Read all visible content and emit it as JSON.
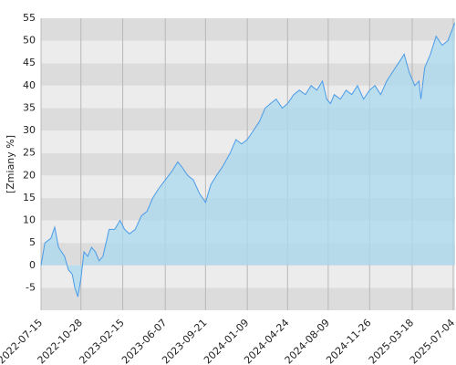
{
  "chart_data": {
    "type": "line",
    "y_label": "[Zmiany %]",
    "x": [
      "2022-07-15",
      "2022-07-25",
      "2022-08-10",
      "2022-08-20",
      "2022-08-30",
      "2022-09-15",
      "2022-09-25",
      "2022-10-05",
      "2022-10-12",
      "2022-10-20",
      "2022-10-28",
      "2022-11-05",
      "2022-11-15",
      "2022-11-25",
      "2022-12-05",
      "2022-12-15",
      "2022-12-25",
      "2023-01-10",
      "2023-01-25",
      "2023-02-08",
      "2023-02-20",
      "2023-03-05",
      "2023-03-20",
      "2023-04-05",
      "2023-04-20",
      "2023-05-05",
      "2023-05-20",
      "2023-06-07",
      "2023-06-25",
      "2023-07-10",
      "2023-07-20",
      "2023-08-05",
      "2023-08-20",
      "2023-09-05",
      "2023-09-21",
      "2023-10-05",
      "2023-10-20",
      "2023-11-05",
      "2023-11-25",
      "2023-12-10",
      "2023-12-25",
      "2024-01-09",
      "2024-01-25",
      "2024-02-10",
      "2024-02-25",
      "2024-03-10",
      "2024-03-25",
      "2024-04-10",
      "2024-04-24",
      "2024-05-10",
      "2024-05-25",
      "2024-06-10",
      "2024-06-25",
      "2024-07-10",
      "2024-07-25",
      "2024-08-05",
      "2024-08-15",
      "2024-08-25",
      "2024-09-10",
      "2024-09-25",
      "2024-10-10",
      "2024-10-25",
      "2024-11-10",
      "2024-11-26",
      "2024-12-10",
      "2024-12-25",
      "2025-01-10",
      "2025-01-25",
      "2025-02-10",
      "2025-02-25",
      "2025-03-10",
      "2025-03-25",
      "2025-04-05",
      "2025-04-10",
      "2025-04-20",
      "2025-05-05",
      "2025-05-20",
      "2025-06-05",
      "2025-06-20",
      "2025-07-04",
      "2025-07-08"
    ],
    "series": [
      {
        "color": "#4a9be8",
        "fill": "#a9d9ef",
        "values": [
          0,
          5,
          6,
          8.5,
          4,
          2,
          -1,
          -2,
          -5,
          -7,
          -3,
          3,
          2,
          4,
          3,
          1,
          2,
          8,
          8,
          10,
          8,
          7,
          8,
          11,
          12,
          15,
          17,
          19,
          21,
          23,
          22,
          20,
          19,
          16,
          14,
          18,
          20,
          22,
          25,
          28,
          27,
          28,
          30,
          32,
          35,
          36,
          37,
          35,
          36,
          38,
          39,
          38,
          40,
          39,
          41,
          37,
          36,
          38,
          37,
          39,
          38,
          40,
          37,
          39,
          40,
          38,
          41,
          43,
          45,
          47,
          43,
          40,
          41,
          37,
          44,
          47,
          51,
          49,
          50,
          53,
          54
        ]
      }
    ],
    "xlim": [
      "2022-07-15",
      "2025-07-09"
    ],
    "xticks": [
      "2022-07-15",
      "2022-10-28",
      "2023-02-15",
      "2023-06-07",
      "2023-09-21",
      "2024-01-09",
      "2024-04-24",
      "2024-08-09",
      "2024-11-26",
      "2025-03-18",
      "2025-07-04"
    ],
    "ylim": [
      -10,
      55
    ],
    "yticks": [
      -5,
      0,
      5,
      10,
      15,
      20,
      25,
      30,
      35,
      40,
      45,
      50,
      55
    ],
    "band_colors": [
      "#dcdcdc",
      "#ececec"
    ],
    "grid": true
  }
}
